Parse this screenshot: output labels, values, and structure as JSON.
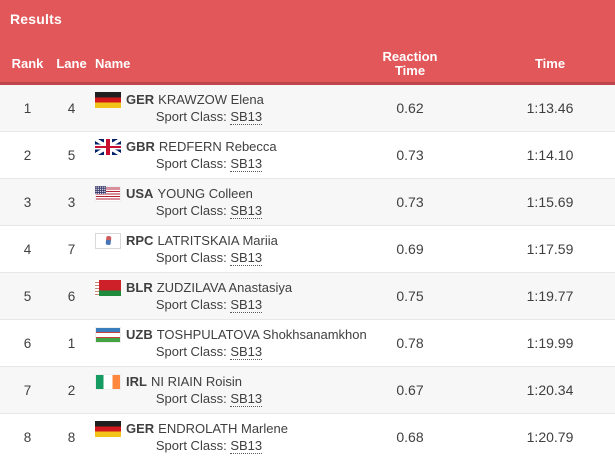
{
  "panel": {
    "title": "Results"
  },
  "colors": {
    "header_red": "#e25759",
    "header_border_red": "#c0464d",
    "row_alt_gray": "#f7f7f8",
    "text": "#3f3f3f"
  },
  "table": {
    "headers": {
      "rank": "Rank",
      "lane": "Lane",
      "name": "Name",
      "reaction": "Reaction Time",
      "time": "Time"
    },
    "sport_class_label": "Sport Class:",
    "rows": [
      {
        "rank": "1",
        "lane": "4",
        "noc": "GER",
        "flag": "ger",
        "name": "KRAWZOW Elena",
        "sport_class": "SB13",
        "reaction": "0.62",
        "time": "1:13.46"
      },
      {
        "rank": "2",
        "lane": "5",
        "noc": "GBR",
        "flag": "gbr",
        "name": "REDFERN Rebecca",
        "sport_class": "SB13",
        "reaction": "0.73",
        "time": "1:14.10"
      },
      {
        "rank": "3",
        "lane": "3",
        "noc": "USA",
        "flag": "usa",
        "name": "YOUNG Colleen",
        "sport_class": "SB13",
        "reaction": "0.73",
        "time": "1:15.69"
      },
      {
        "rank": "4",
        "lane": "7",
        "noc": "RPC",
        "flag": "rpc",
        "name": "LATRITSKAIA Mariia",
        "sport_class": "SB13",
        "reaction": "0.69",
        "time": "1:17.59"
      },
      {
        "rank": "5",
        "lane": "6",
        "noc": "BLR",
        "flag": "blr",
        "name": "ZUDZILAVA Anastasiya",
        "sport_class": "SB13",
        "reaction": "0.75",
        "time": "1:19.77"
      },
      {
        "rank": "6",
        "lane": "1",
        "noc": "UZB",
        "flag": "uzb",
        "name": "TOSHPULATOVA Shokhsanamkhon",
        "sport_class": "SB13",
        "reaction": "0.78",
        "time": "1:19.99"
      },
      {
        "rank": "7",
        "lane": "2",
        "noc": "IRL",
        "flag": "irl",
        "name": "NI RIAIN Roisin",
        "sport_class": "SB13",
        "reaction": "0.67",
        "time": "1:20.34"
      },
      {
        "rank": "8",
        "lane": "8",
        "noc": "GER",
        "flag": "ger",
        "name": "ENDROLATH Marlene",
        "sport_class": "SB13",
        "reaction": "0.68",
        "time": "1:20.79"
      }
    ]
  }
}
